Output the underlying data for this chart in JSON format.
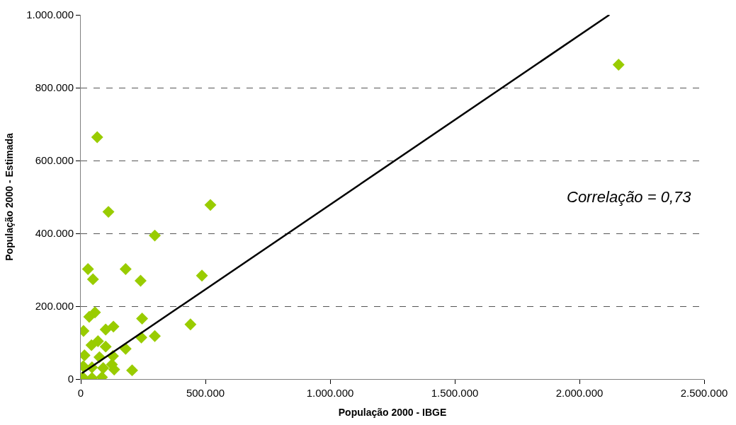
{
  "chart_data": {
    "type": "scatter",
    "xlabel": "População 2000 - IBGE",
    "ylabel": "População 2000 - Estimada",
    "annotations": [
      "Correlação = 0,73"
    ],
    "xlim": [
      0,
      2500000
    ],
    "ylim": [
      0,
      1000000
    ],
    "xticks": [
      0,
      {
        "value": 500000,
        "label": "500.000"
      },
      {
        "value": 1000000,
        "label": "1.000.000"
      },
      {
        "value": 1500000,
        "label": "1.500.000"
      },
      {
        "value": 2000000,
        "label": "2.000.000"
      },
      {
        "value": 2500000,
        "label": "2.500.000"
      }
    ],
    "yticks": [
      0,
      {
        "value": 200000,
        "label": "200.000"
      },
      {
        "value": 400000,
        "label": "400.000"
      },
      {
        "value": 600000,
        "label": "600.000"
      },
      {
        "value": 800000,
        "label": "800.000"
      },
      {
        "value": 1000000,
        "label": "1.000.000"
      }
    ],
    "grid": "y",
    "marker": "diamond",
    "series": [
      {
        "color": "#99cc00",
        "x": [
          2157000,
          66000,
          111000,
          520000,
          297000,
          29000,
          180000,
          49000,
          240000,
          486000,
          34000,
          57000,
          246000,
          11000,
          100000,
          131000,
          440000,
          243000,
          297000,
          69000,
          100000,
          180000,
          129000,
          206000,
          134000,
          43000,
          8000,
          45000,
          85000,
          10000,
          45000,
          90000,
          15000,
          75000,
          125000
        ],
        "values": [
          863000,
          664000,
          459000,
          478000,
          394000,
          302000,
          302000,
          274000,
          270000,
          284000,
          171000,
          183000,
          166000,
          132000,
          136000,
          144000,
          150000,
          114000,
          118000,
          104000,
          89000,
          83000,
          63000,
          24000,
          26000,
          93000,
          5000,
          3000,
          5000,
          35000,
          32000,
          30000,
          65000,
          60000,
          40000
        ]
      },
      {
        "type": "line",
        "color": "#000000",
        "x": [
          5000,
          2120000
        ],
        "values": [
          16000,
          1000000
        ],
        "line_style": "solid",
        "marker": "none"
      }
    ]
  }
}
